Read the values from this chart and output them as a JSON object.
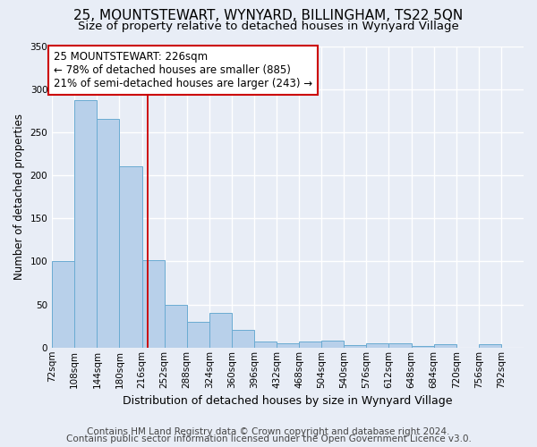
{
  "title": "25, MOUNTSTEWART, WYNYARD, BILLINGHAM, TS22 5QN",
  "subtitle": "Size of property relative to detached houses in Wynyard Village",
  "xlabel": "Distribution of detached houses by size in Wynyard Village",
  "ylabel": "Number of detached properties",
  "footer_line1": "Contains HM Land Registry data © Crown copyright and database right 2024.",
  "footer_line2": "Contains public sector information licensed under the Open Government Licence v3.0.",
  "annotation_line1": "25 MOUNTSTEWART: 226sqm",
  "annotation_line2": "← 78% of detached houses are smaller (885)",
  "annotation_line3": "21% of semi-detached houses are larger (243) →",
  "bar_left_edges": [
    72,
    108,
    144,
    180,
    216,
    252,
    288,
    324,
    360,
    396,
    432,
    468,
    504,
    540,
    576,
    612,
    648,
    684,
    720,
    756
  ],
  "bar_values": [
    100,
    287,
    265,
    210,
    101,
    50,
    30,
    40,
    20,
    7,
    5,
    7,
    8,
    3,
    5,
    5,
    2,
    4,
    0,
    4
  ],
  "bin_width": 36,
  "bar_color": "#b8d0ea",
  "bar_edge_color": "#6aabd2",
  "vline_x": 226,
  "vline_color": "#cc0000",
  "ylim": [
    0,
    350
  ],
  "yticks": [
    0,
    50,
    100,
    150,
    200,
    250,
    300,
    350
  ],
  "xmin": 72,
  "xmax": 828,
  "bg_color": "#e8edf6",
  "grid_color": "#ffffff",
  "title_fontsize": 11,
  "subtitle_fontsize": 9.5,
  "ylabel_fontsize": 8.5,
  "xlabel_fontsize": 9,
  "tick_fontsize": 7.5,
  "annotation_fontsize": 8.5,
  "footer_fontsize": 7.5
}
